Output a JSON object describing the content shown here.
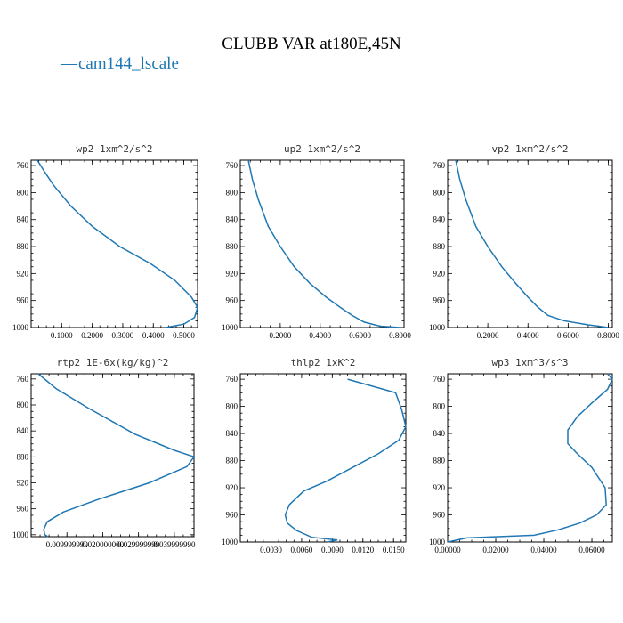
{
  "figure": {
    "title": "CLUBB VAR at180E,45N",
    "legend": {
      "marker": "—",
      "label": "cam144_lscale",
      "color": "#1f77b4"
    }
  },
  "chart_data": [
    {
      "type": "line",
      "title": "wp2   1xm^2/s^2",
      "xlim": [
        0.0,
        0.545
      ],
      "ylim": [
        1000,
        752
      ],
      "yticks": [
        760,
        800,
        840,
        880,
        920,
        960,
        1000
      ],
      "xticks": [
        0.1,
        0.2,
        0.3,
        0.4,
        0.5
      ],
      "xtick_labels": [
        "0.1000",
        "0.2000",
        "0.3000",
        "0.4000",
        "0.5000"
      ],
      "series": [
        {
          "name": "cam144_lscale",
          "x": [
            0.02,
            0.045,
            0.075,
            0.13,
            0.2,
            0.29,
            0.39,
            0.47,
            0.525,
            0.545,
            0.535,
            0.5,
            0.44
          ],
          "y": [
            752,
            770,
            790,
            820,
            850,
            880,
            905,
            930,
            955,
            970,
            985,
            995,
            1000
          ]
        }
      ]
    },
    {
      "type": "line",
      "title": "up2   1xm^2/s^2",
      "xlim": [
        0.0,
        0.82
      ],
      "ylim": [
        1000,
        752
      ],
      "yticks": [
        760,
        800,
        840,
        880,
        920,
        960,
        1000
      ],
      "xticks": [
        0.2,
        0.4,
        0.6,
        0.8
      ],
      "xtick_labels": [
        "0.2000",
        "0.4000",
        "0.6000",
        "0.8000"
      ],
      "series": [
        {
          "name": "cam144_lscale",
          "x": [
            0.04,
            0.06,
            0.09,
            0.14,
            0.2,
            0.27,
            0.35,
            0.43,
            0.5,
            0.56,
            0.62,
            0.7,
            0.8
          ],
          "y": [
            752,
            780,
            810,
            850,
            880,
            910,
            935,
            955,
            970,
            982,
            992,
            998,
            1000
          ]
        }
      ]
    },
    {
      "type": "line",
      "title": "vp2   1xm^2/s^2",
      "xlim": [
        0.0,
        0.82
      ],
      "ylim": [
        1000,
        752
      ],
      "yticks": [
        760,
        800,
        840,
        880,
        920,
        960,
        1000
      ],
      "xticks": [
        0.2,
        0.4,
        0.6,
        0.8
      ],
      "xtick_labels": [
        "0.2000",
        "0.4000",
        "0.6000",
        "0.8000"
      ],
      "series": [
        {
          "name": "cam144_lscale",
          "x": [
            0.04,
            0.06,
            0.09,
            0.14,
            0.2,
            0.27,
            0.34,
            0.4,
            0.45,
            0.5,
            0.58,
            0.7,
            0.8
          ],
          "y": [
            752,
            780,
            810,
            850,
            880,
            910,
            935,
            955,
            970,
            982,
            990,
            996,
            1000
          ]
        }
      ]
    },
    {
      "type": "line",
      "title": "rtp2   1E-6x(kg/kg)^2",
      "xlim": [
        0.0,
        0.0455
      ],
      "ylim": [
        1003,
        752
      ],
      "yticks": [
        760,
        800,
        840,
        880,
        920,
        960,
        1000
      ],
      "xticks": [
        0.01,
        0.02,
        0.03,
        0.04
      ],
      "xtick_labels": [
        "0.009999999",
        "0.020000000",
        "0.029999999",
        "0.039999990"
      ],
      "series": [
        {
          "name": "cam144_lscale",
          "x": [
            0.002,
            0.007,
            0.016,
            0.029,
            0.04,
            0.0455,
            0.0435,
            0.033,
            0.019,
            0.009,
            0.0045,
            0.0035,
            0.0038,
            0.0047
          ],
          "y": [
            752,
            775,
            805,
            845,
            870,
            880,
            895,
            920,
            945,
            965,
            980,
            992,
            1000,
            1003
          ]
        }
      ]
    },
    {
      "type": "line",
      "title": "thlp2   1xK^2",
      "xlim": [
        0.0,
        0.0162
      ],
      "ylim": [
        1000,
        752
      ],
      "yticks": [
        760,
        800,
        840,
        880,
        920,
        960,
        1000
      ],
      "xticks": [
        0.003,
        0.006,
        0.009,
        0.012,
        0.015
      ],
      "xtick_labels": [
        "0.0030",
        "0.0060",
        "0.0090",
        "0.0120",
        "0.0150"
      ],
      "series": [
        {
          "name": "cam144_lscale",
          "x": [
            0.0105,
            0.0152,
            0.0158,
            0.0162,
            0.0155,
            0.0135,
            0.011,
            0.0085,
            0.0062,
            0.0048,
            0.0044,
            0.0046,
            0.0055,
            0.007,
            0.0095,
            0.0085
          ],
          "y": [
            760,
            780,
            805,
            830,
            850,
            870,
            890,
            910,
            925,
            945,
            960,
            972,
            983,
            993,
            997,
            1000
          ]
        }
      ]
    },
    {
      "type": "line",
      "title": "wp3   1xm^3/s^3",
      "xlim": [
        0.0,
        0.0685
      ],
      "ylim": [
        1000,
        752
      ],
      "yticks": [
        760,
        800,
        840,
        880,
        920,
        960,
        1000
      ],
      "xticks": [
        0.0,
        0.02,
        0.04,
        0.06
      ],
      "xtick_labels": [
        "0.00000",
        "0.02000",
        "0.04000",
        "0.06000"
      ],
      "series": [
        {
          "name": "cam144_lscale",
          "x": [
            0.0665,
            0.0685,
            0.0665,
            0.06,
            0.054,
            0.05,
            0.05,
            0.054,
            0.06,
            0.0655,
            0.066,
            0.062,
            0.055,
            0.046,
            0.036,
            0.008,
            0.0
          ],
          "y": [
            752,
            760,
            775,
            795,
            815,
            835,
            855,
            870,
            890,
            920,
            945,
            960,
            972,
            982,
            990,
            994,
            1000
          ]
        }
      ]
    }
  ]
}
